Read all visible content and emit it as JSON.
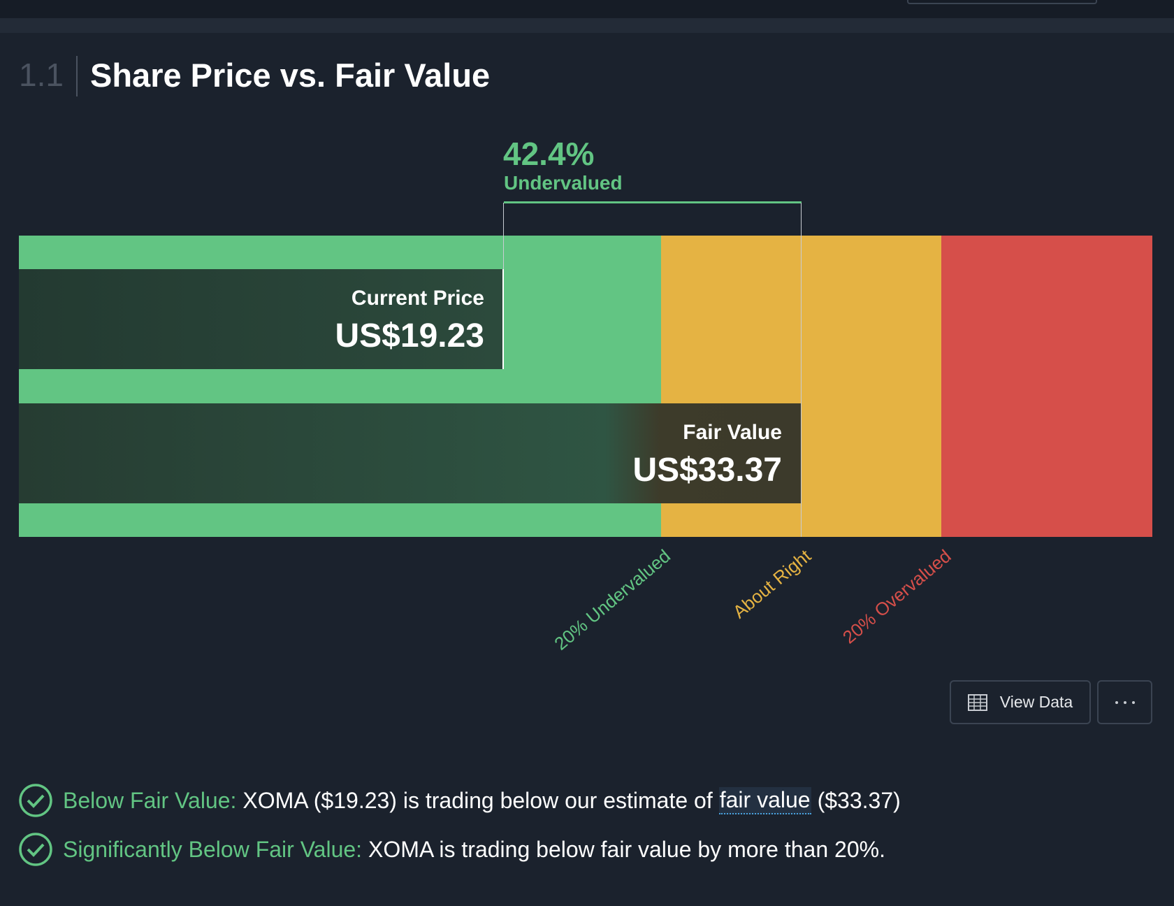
{
  "section": {
    "number": "1.1",
    "title": "Share Price vs. Fair Value"
  },
  "valuation": {
    "difference": "42.4%",
    "difference_label": "Undervalued",
    "current_price": {
      "label": "Current Price",
      "value": "US$19.23"
    },
    "fair_value": {
      "label": "Fair Value",
      "value": "US$33.37"
    },
    "zones": [
      "20% Undervalued",
      "About Right",
      "20% Overvalued"
    ]
  },
  "buttons": {
    "view_data": "View Data"
  },
  "checks": [
    {
      "label": "Below Fair Value:",
      "text": "XOMA ($19.23) is trading below our estimate of",
      "link": "fair value",
      "text_after": "($33.37)"
    },
    {
      "label": "Significantly Below Fair Value:",
      "text": "XOMA is trading below fair value by more than 20%."
    }
  ]
}
